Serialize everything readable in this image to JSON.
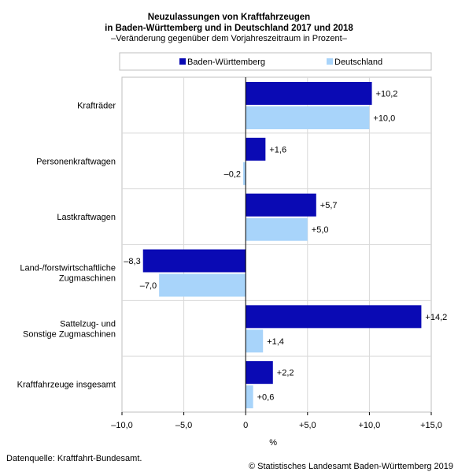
{
  "header": {
    "title_line1": "Neuzulassungen von Kraftfahrzeugen",
    "title_line2": "in Baden-Württemberg und in Deutschland 2017 und 2018",
    "subtitle": "–Veränderung gegenüber dem Vorjahreszeitraum in Prozent–"
  },
  "colors": {
    "bw": "#0a0ab4",
    "de": "#a8d4fa",
    "grid": "#d9d9d9",
    "border": "#bfbfbf"
  },
  "chart_data": {
    "type": "bar",
    "orientation": "horizontal",
    "categories": [
      "Krafträder",
      "Personenkraftwagen",
      "Lastkraftwagen",
      "Land-/forstwirtschaftliche Zugmaschinen",
      "Sattelzug- und Sonstige Zugmaschinen",
      "Kraftfahrzeuge insgesamt"
    ],
    "category_lines": [
      [
        "Krafträder"
      ],
      [
        "Personenkraftwagen"
      ],
      [
        "Lastkraftwagen"
      ],
      [
        "Land-/forstwirtschaftliche",
        "Zugmaschinen"
      ],
      [
        "Sattelzug- und",
        "Sonstige Zugmaschinen"
      ],
      [
        "Kraftfahrzeuge insgesamt"
      ]
    ],
    "series": [
      {
        "name": "Baden-Württemberg",
        "values": [
          10.2,
          1.6,
          5.7,
          -8.3,
          14.2,
          2.2
        ],
        "labels": [
          "+10,2",
          "+1,6",
          "+5,7",
          "–8,3",
          "+14,2",
          "+2,2"
        ]
      },
      {
        "name": "Deutschland",
        "values": [
          10.0,
          -0.2,
          5.0,
          -7.0,
          1.4,
          0.6
        ],
        "labels": [
          "+10,0",
          "–0,2",
          "+5,0",
          "–7,0",
          "+1,4",
          "+0,6"
        ]
      }
    ],
    "xlim": [
      -10,
      15
    ],
    "xticks": [
      -10,
      -5,
      0,
      5,
      10,
      15
    ],
    "xtick_labels": [
      "–10,0",
      "–5,0",
      "0",
      "+5,0",
      "+10,0",
      "+15,0"
    ],
    "xlabel": "%",
    "legend_position": "top",
    "grid": true
  },
  "footer": {
    "source": "Datenquelle: Kraftfahrt-Bundesamt.",
    "copyright": "© Statistisches Landesamt Baden-Württemberg 2019"
  }
}
